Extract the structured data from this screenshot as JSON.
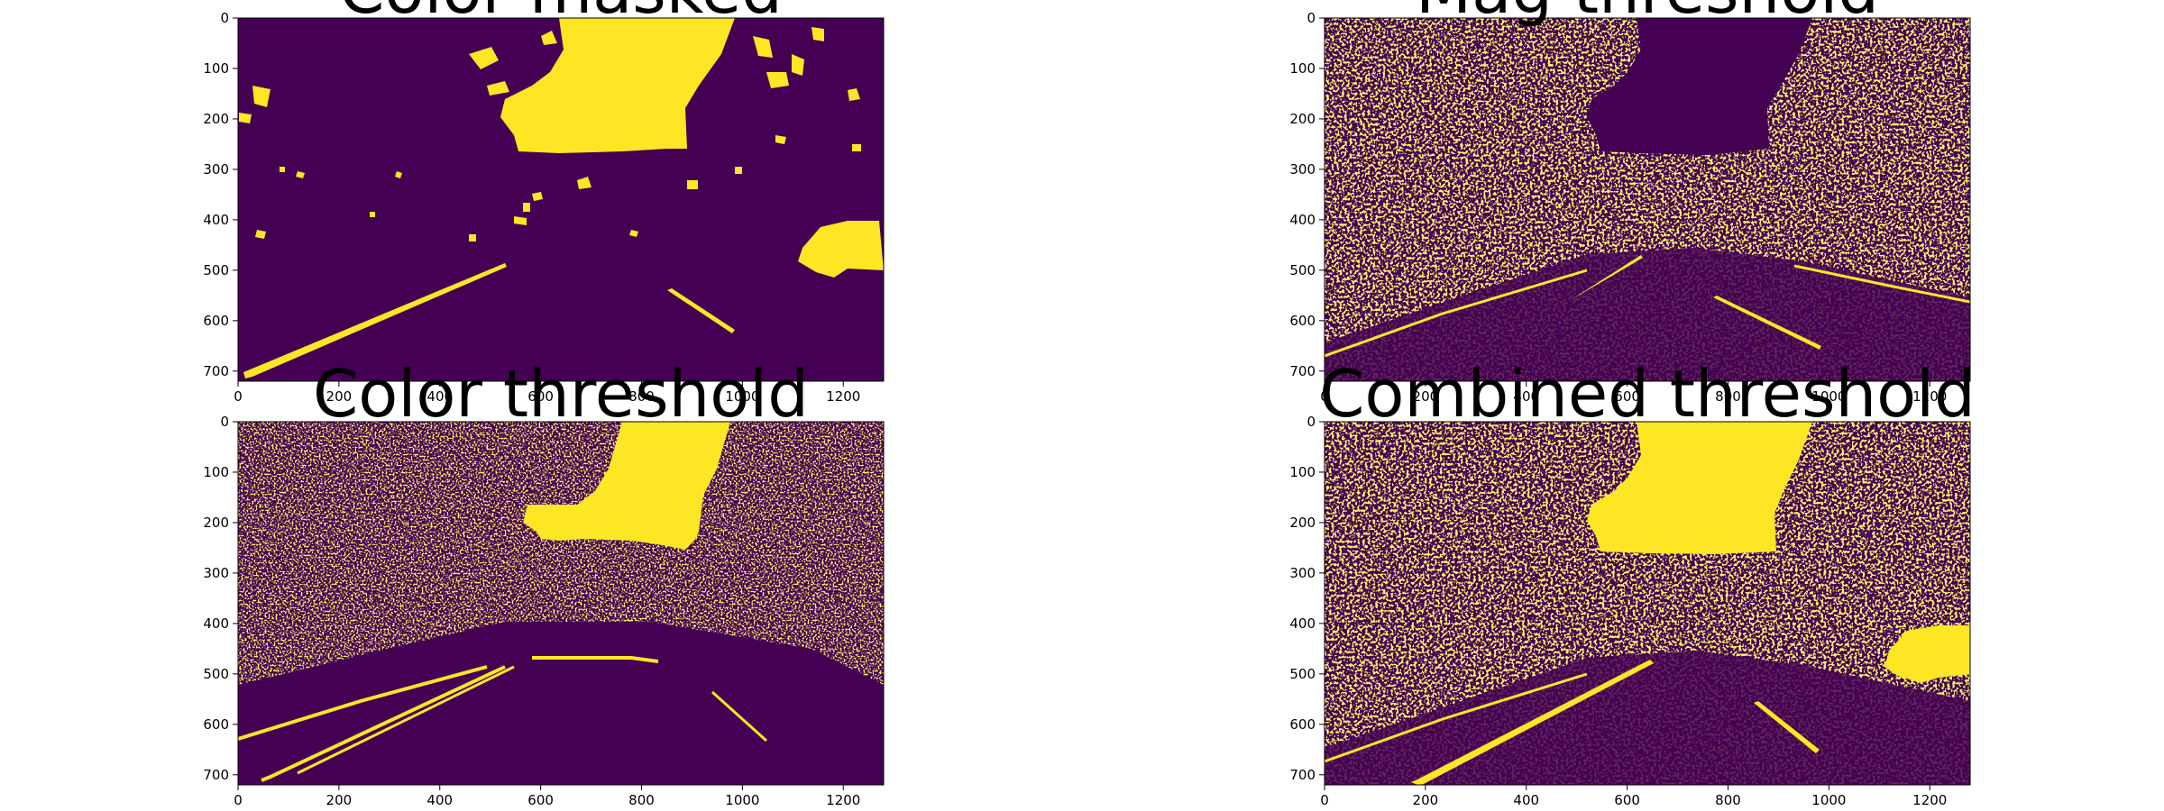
{
  "figure": {
    "panels": [
      {
        "title": "Color masked",
        "x_ticks": [
          "0",
          "200",
          "400",
          "600",
          "800",
          "1000",
          "1200"
        ],
        "y_ticks": [
          "0",
          "100",
          "200",
          "300",
          "400",
          "500",
          "600",
          "700"
        ]
      },
      {
        "title": "Mag threshold",
        "x_ticks": [
          "0",
          "200",
          "400",
          "600",
          "800",
          "1000",
          "1200"
        ],
        "y_ticks": [
          "0",
          "100",
          "200",
          "300",
          "400",
          "500",
          "600",
          "700"
        ]
      },
      {
        "title": "Color threshold",
        "x_ticks": [
          "0",
          "200",
          "400",
          "600",
          "800",
          "1000",
          "1200"
        ],
        "y_ticks": [
          "0",
          "100",
          "200",
          "300",
          "400",
          "500",
          "600",
          "700"
        ]
      },
      {
        "title": "Combined threshold",
        "x_ticks": [
          "0",
          "200",
          "400",
          "600",
          "800",
          "1000",
          "1200"
        ],
        "y_ticks": [
          "0",
          "100",
          "200",
          "300",
          "400",
          "500",
          "600",
          "700"
        ]
      }
    ],
    "image_size": {
      "width": 1280,
      "height": 720
    },
    "colors": {
      "background": "#440154",
      "foreground": "#fde725"
    }
  }
}
